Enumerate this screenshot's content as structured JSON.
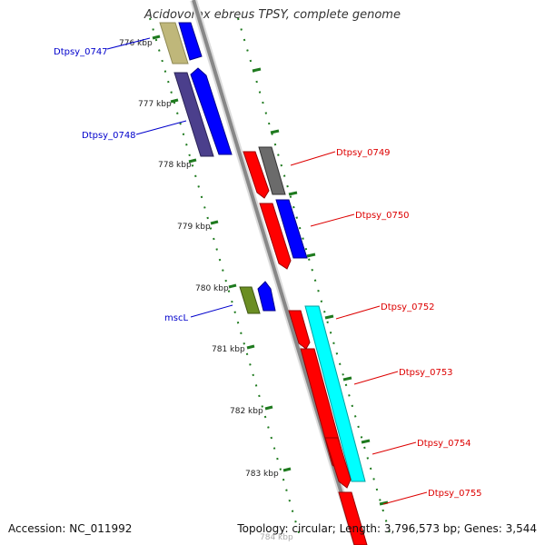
{
  "title": "Acidovorax ebreus TPSY, complete genome",
  "footer": {
    "accession_label": "Accession: NC_011992",
    "summary_label": "Topology: circular; Length: 3,796,573 bp; Genes: 3,544"
  },
  "colors": {
    "backbone": "#8a8a8a",
    "tick": "#1e7a1e",
    "label_forward": "#0000cc",
    "label_reverse": "#dd0000",
    "gene_red": "#ff0000",
    "gene_blue": "#0000ff",
    "gene_cyan": "#00ffff",
    "gene_gray": "#6b6b6b",
    "gene_navy": "#4b3f8c",
    "gene_olive": "#6b8e23",
    "gene_khaki": "#bfb77a"
  },
  "ticks": [
    {
      "label": "776 kbp"
    },
    {
      "label": "777 kbp"
    },
    {
      "label": "778 kbp"
    },
    {
      "label": "779 kbp"
    },
    {
      "label": "780 kbp"
    },
    {
      "label": "781 kbp"
    },
    {
      "label": "782 kbp"
    },
    {
      "label": "783 kbp"
    },
    {
      "label": "784 kbp"
    }
  ],
  "gene_labels": {
    "dtpsy_0747": "Dtpsy_0747",
    "dtpsy_0748": "Dtpsy_0748",
    "dtpsy_0749": "Dtpsy_0749",
    "dtpsy_0750": "Dtpsy_0750",
    "mscl": "mscL",
    "dtpsy_0752": "Dtpsy_0752",
    "dtpsy_0753": "Dtpsy_0753",
    "dtpsy_0754": "Dtpsy_0754",
    "dtpsy_0755": "Dtpsy_0755"
  }
}
